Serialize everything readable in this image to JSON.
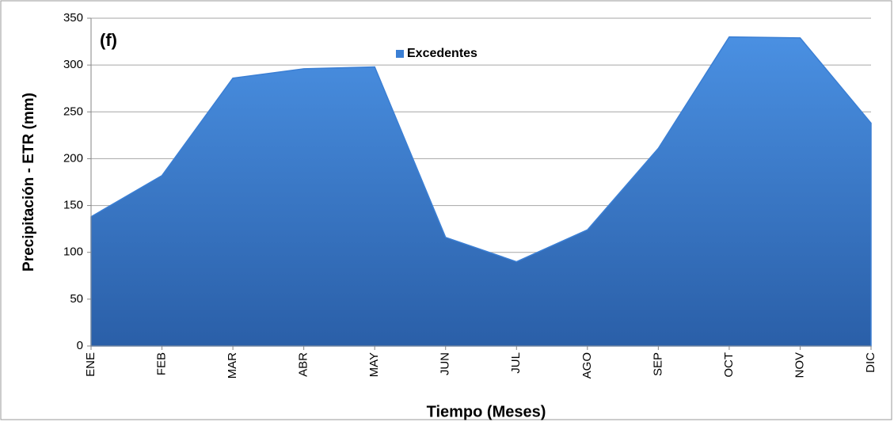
{
  "chart_data": {
    "type": "area",
    "annotation": "(f)",
    "xlabel": "Tiempo (Meses)",
    "ylabel": "Precipitación - ETR (mm)",
    "categories": [
      "ENE",
      "FEB",
      "MAR",
      "ABR",
      "MAY",
      "JUN",
      "JUL",
      "AGO",
      "SEP",
      "OCT",
      "NOV",
      "DIC"
    ],
    "series": [
      {
        "name": "Excedentes",
        "color": "#3b7fd4",
        "values": [
          138,
          182,
          286,
          296,
          298,
          116,
          90,
          124,
          211,
          330,
          329,
          238
        ]
      }
    ],
    "ylim": [
      0,
      350
    ],
    "yticks": [
      0,
      50,
      100,
      150,
      200,
      250,
      300,
      350
    ],
    "grid": true,
    "legend": "top"
  }
}
